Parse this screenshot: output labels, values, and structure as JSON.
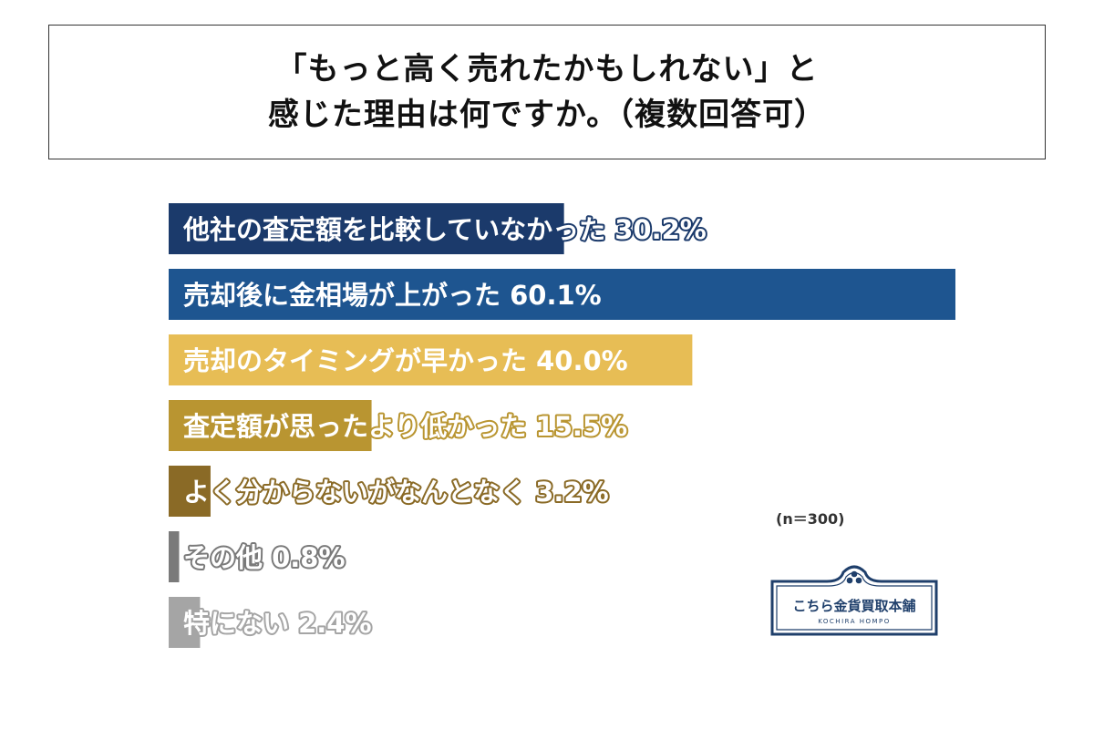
{
  "title": {
    "line1": "「もっと高く売れたかもしれない」と",
    "line2": "感じた理由は何ですか。（複数回答可）"
  },
  "note": "(n＝300)",
  "logo": {
    "name": "こちら金貨買取本舗",
    "romaji": "KOCHIRA HOMPO",
    "color": "#1f3f6b"
  },
  "chart_data": {
    "type": "bar",
    "orientation": "horizontal",
    "unit": "%",
    "categories": [
      "他社の査定額を比較していなかった",
      "売却後に金相場が上がった",
      "売却のタイミングが早かった",
      "査定額が思ったより低かった",
      "よく分からないがなんとなく",
      "その他",
      "特にない"
    ],
    "values": [
      30.2,
      60.1,
      40.0,
      15.5,
      3.2,
      0.8,
      2.4
    ],
    "value_labels": [
      "30.2%",
      "60.1%",
      "40.0%",
      "15.5%",
      "3.2%",
      "0.8%",
      "2.4%"
    ],
    "colors": [
      "#1b3a6b",
      "#1e5590",
      "#e7bd55",
      "#b99531",
      "#8a6a26",
      "#7a7a7a",
      "#a5a5a5"
    ],
    "stroke_colors": [
      "#1b3a6b",
      "#1e5590",
      "#e7bd55",
      "#b99531",
      "#8a6a26",
      "#7a7a7a",
      "#a5a5a5"
    ],
    "xlim": [
      0,
      60.1
    ],
    "grid": false,
    "legend": "none"
  }
}
